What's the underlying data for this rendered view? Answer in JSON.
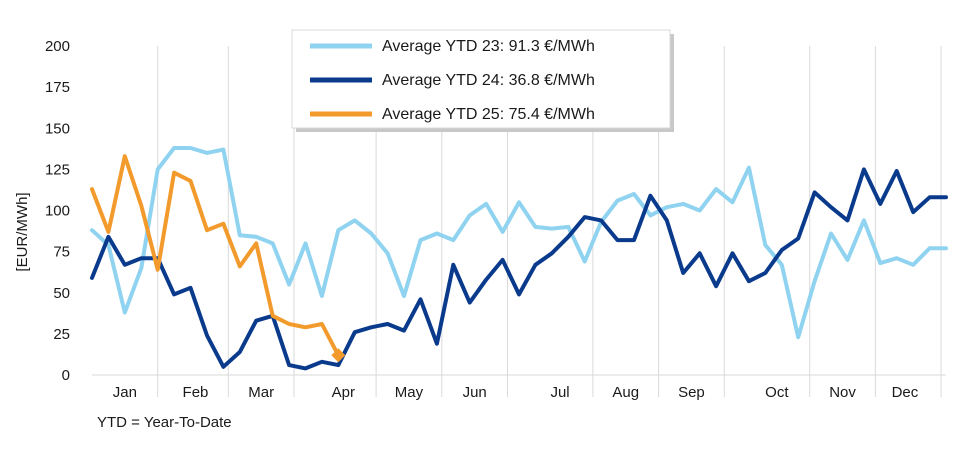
{
  "chart_data": {
    "type": "line",
    "ylabel": "[EUR/MWh]",
    "ylim": [
      0,
      200
    ],
    "yticks": [
      0,
      25,
      50,
      75,
      100,
      125,
      150,
      175,
      200
    ],
    "x_domain": [
      0,
      52
    ],
    "months": [
      "Jan",
      "Feb",
      "Mar",
      "Apr",
      "May",
      "Jun",
      "Jul",
      "Aug",
      "Sep",
      "Oct",
      "Nov",
      "Dec"
    ],
    "month_label_weeks": [
      2,
      6.3,
      10.3,
      15.3,
      19.3,
      23.3,
      28.5,
      32.5,
      36.5,
      41.7,
      45.7,
      49.5
    ],
    "month_separator_weeks": [
      4,
      8.3,
      12.3,
      17.3,
      21.3,
      25.3,
      30.5,
      34.5,
      38.5,
      43.7,
      47.7,
      51.7
    ],
    "grid": "vertical-month-separators",
    "legend_position": "top-center",
    "footnote": "YTD = Year-To-Date",
    "series": [
      {
        "name": "Average YTD 23: 91.3 €/MWh",
        "color": "#8fd3f0",
        "x": [
          0,
          1,
          2,
          3,
          4,
          5,
          6,
          7,
          8,
          9,
          10,
          11,
          12,
          13,
          14,
          15,
          16,
          17,
          18,
          19,
          20,
          21,
          22,
          23,
          24,
          25,
          26,
          27,
          28,
          29,
          30,
          31,
          32,
          33,
          34,
          35,
          36,
          37,
          38,
          39,
          40,
          41,
          42,
          43,
          44,
          45,
          46,
          47,
          48,
          49,
          50,
          51,
          52
        ],
        "values": [
          88,
          79,
          38,
          65,
          125,
          138,
          138,
          135,
          137,
          85,
          84,
          80,
          55,
          80,
          48,
          88,
          94,
          86,
          74,
          48,
          82,
          86,
          82,
          97,
          104,
          87,
          105,
          90,
          89,
          90,
          69,
          93,
          106,
          110,
          97,
          102,
          104,
          100,
          113,
          105,
          126,
          79,
          67,
          23,
          57,
          86,
          70,
          94,
          68,
          71,
          67,
          77,
          77
        ]
      },
      {
        "name": "Average YTD 24: 36.8 €/MWh",
        "color": "#0a3a8c",
        "x": [
          0,
          1,
          2,
          3,
          4,
          5,
          6,
          7,
          8,
          9,
          10,
          11,
          12,
          13,
          14,
          15,
          16,
          17,
          18,
          19,
          20,
          21,
          22,
          23,
          24,
          25,
          26,
          27,
          28,
          29,
          30,
          31,
          32,
          33,
          34,
          35,
          36,
          37,
          38,
          39,
          40,
          41,
          42,
          43,
          44,
          45,
          46,
          47,
          48,
          49,
          50,
          51,
          52
        ],
        "values": [
          59,
          84,
          67,
          71,
          71,
          49,
          53,
          24,
          5,
          14,
          33,
          36,
          6,
          4,
          8,
          6,
          26,
          29,
          31,
          27,
          46,
          19,
          67,
          44,
          58,
          70,
          49,
          67,
          74,
          84,
          96,
          94,
          82,
          82,
          109,
          94,
          62,
          74,
          54,
          74,
          57,
          62,
          76,
          83,
          111,
          102,
          94,
          125,
          104,
          124,
          99,
          108,
          108
        ]
      },
      {
        "name": "Average YTD 25: 75.4 €/MWh",
        "color": "#f39a2c",
        "x": [
          0,
          1,
          2,
          3,
          4,
          5,
          6,
          7,
          8,
          9,
          10,
          11,
          12,
          13,
          14,
          15
        ],
        "values": [
          113,
          87,
          133,
          103,
          64,
          123,
          118,
          88,
          92,
          66,
          80,
          36,
          31,
          29,
          31,
          12
        ]
      }
    ]
  }
}
